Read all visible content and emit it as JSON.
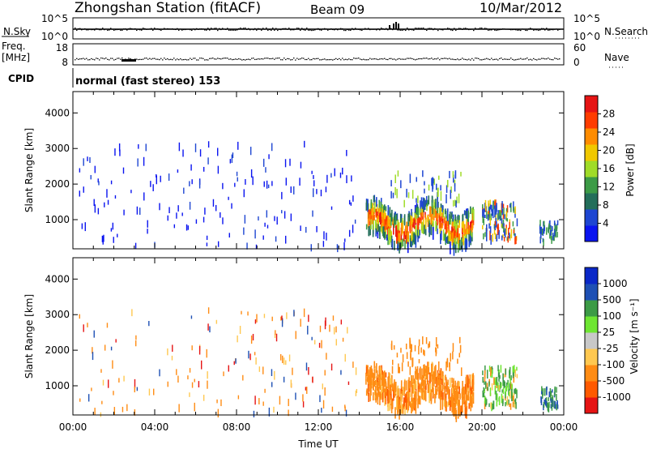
{
  "header": {
    "station": "Zhongshan Station (fitACF)",
    "beam": "Beam 09",
    "date": "10/Mar/2012"
  },
  "top_panels": {
    "nsky": {
      "left_label": "N.Sky",
      "right_label": "N.Search",
      "left_ticks": [
        "10^5",
        "10^0"
      ],
      "right_ticks": [
        "10^5",
        "10^0"
      ]
    },
    "freq": {
      "left_label_line1": "Freq.",
      "left_label_line2": "[MHz]",
      "right_label": "Nave",
      "left_ticks": [
        "18",
        "8"
      ],
      "right_ticks": [
        "60",
        "0"
      ]
    },
    "cpid": {
      "label": "CPID",
      "value": "normal (fast stereo) 153"
    }
  },
  "colors": {
    "power": [
      "#0a14f0",
      "#1e46d2",
      "#236e5a",
      "#3c9b46",
      "#a0dc28",
      "#f0c800",
      "#ff8c00",
      "#ff3c00",
      "#e61414"
    ],
    "velocity": [
      "#e61414",
      "#ff5a00",
      "#ff8c14",
      "#ffc850",
      "#c8c8c8",
      "#6ee632",
      "#3c9b46",
      "#1e50b4",
      "#0a28c8"
    ]
  },
  "chart_data": [
    {
      "type": "heatmap",
      "title": "",
      "xlabel": "",
      "ylabel": "Slant Range [km]",
      "xlim": [
        0,
        24
      ],
      "ylim": [
        180,
        4600
      ],
      "x_ticks": [],
      "y_ticks": [
        "1000",
        "2000",
        "3000",
        "4000"
      ],
      "colorbar": {
        "label": "Power [dB]",
        "range": [
          0,
          32
        ],
        "ticks": [
          "4",
          "8",
          "12",
          "16",
          "20",
          "24",
          "28"
        ]
      },
      "regions": [
        {
          "name": "sparse_scatter",
          "x": [
            0.2,
            14.0
          ],
          "y": [
            200,
            3300
          ],
          "value": 5
        },
        {
          "name": "main_echo",
          "x": [
            14.3,
            19.6
          ],
          "y": [
            500,
            1500
          ],
          "value": 28
        },
        {
          "name": "echo_edge_upper",
          "x": [
            14.3,
            19.6
          ],
          "y": [
            1200,
            2100
          ],
          "value": 10
        },
        {
          "name": "evening_patch",
          "x": [
            20.0,
            21.7
          ],
          "y": [
            600,
            1300
          ],
          "value": 18
        },
        {
          "name": "late_patch",
          "x": [
            22.8,
            23.7
          ],
          "y": [
            500,
            1000
          ],
          "value": 9
        }
      ]
    },
    {
      "type": "heatmap",
      "title": "",
      "xlabel": "Time UT",
      "ylabel": "Slant Range [km]",
      "xlim": [
        0,
        24
      ],
      "ylim": [
        180,
        4600
      ],
      "x_ticks": [
        "00:00",
        "04:00",
        "08:00",
        "12:00",
        "16:00",
        "20:00",
        "00:00"
      ],
      "y_ticks": [
        "1000",
        "2000",
        "3000",
        "4000"
      ],
      "colorbar": {
        "label": "Velocity [m s⁻¹]",
        "ticks": [
          "1000",
          "500",
          "100",
          "25",
          "-25",
          "-100",
          "-500",
          "-1000"
        ]
      },
      "regions": [
        {
          "name": "sparse_scatter",
          "x": [
            0.2,
            14.0
          ],
          "y": [
            200,
            3300
          ],
          "value": -100
        },
        {
          "name": "main_echo",
          "x": [
            14.3,
            19.6
          ],
          "y": [
            500,
            2000
          ],
          "value": -200
        },
        {
          "name": "evening_patch",
          "x": [
            20.0,
            21.7
          ],
          "y": [
            600,
            1500
          ],
          "value": 100
        },
        {
          "name": "late_patch",
          "x": [
            22.8,
            23.7
          ],
          "y": [
            500,
            1000
          ],
          "value": 200
        }
      ]
    }
  ]
}
